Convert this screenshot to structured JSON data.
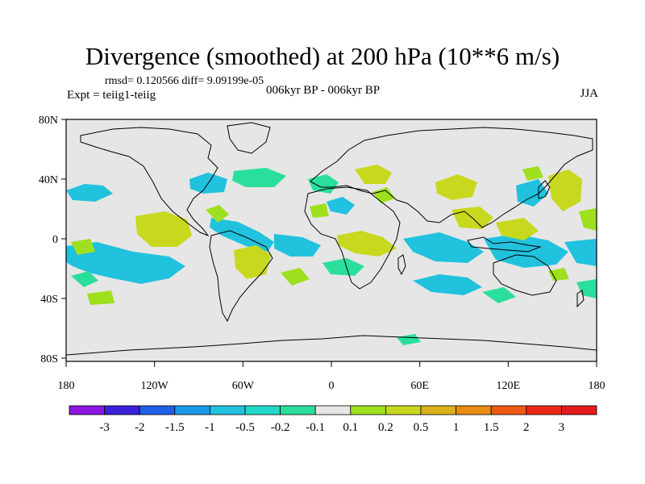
{
  "header": {
    "title": "Divergence (smoothed) at 200 hPa (10**6 m/s)",
    "stats": "rmsd= 0.120566 diff= 9.09199e-05",
    "experiment": "Expt = teiig1-teiig",
    "period": "006kyr BP - 006kyr BP",
    "season": "JJA"
  },
  "map": {
    "lat_labels": [
      "80N",
      "40N",
      "0",
      "40S",
      "80S"
    ],
    "lon_labels": [
      "180",
      "120W",
      "60W",
      "0",
      "60E",
      "120E",
      "180"
    ],
    "background_color": "#e6e6e6"
  },
  "colorbar": {
    "labels": [
      "-3",
      "-2",
      "-1.5",
      "-1",
      "-0.5",
      "-0.2",
      "-0.1",
      "0.1",
      "0.2",
      "0.5",
      "1",
      "1.5",
      "2",
      "3"
    ],
    "colors": [
      "#8a16e0",
      "#3a22d8",
      "#1f5fe8",
      "#1a9be6",
      "#21c2de",
      "#21d8c8",
      "#2adf9c",
      "#e6e6e6",
      "#9ee01e",
      "#c8d81e",
      "#dcb21a",
      "#e88c14",
      "#ee5a14",
      "#e82814",
      "#e41a1a"
    ]
  }
}
